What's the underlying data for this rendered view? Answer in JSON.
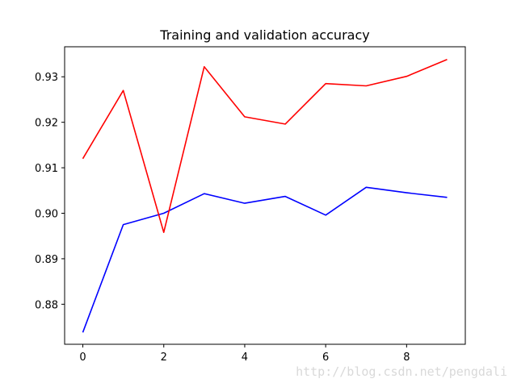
{
  "chart_data": {
    "type": "line",
    "title": "Training and validation accuracy",
    "xlabel": "",
    "ylabel": "",
    "x": [
      0,
      1,
      2,
      3,
      4,
      5,
      6,
      7,
      8,
      9
    ],
    "series": [
      {
        "color": "#0000ff",
        "values": [
          0.8738,
          0.8975,
          0.9,
          0.9043,
          0.9022,
          0.9037,
          0.8996,
          0.9057,
          0.9045,
          0.9035
        ]
      },
      {
        "color": "#ff0000",
        "values": [
          0.912,
          0.927,
          0.8958,
          0.9322,
          0.9212,
          0.9196,
          0.9285,
          0.928,
          0.9301,
          0.9338
        ]
      }
    ],
    "xlim": [
      -0.45,
      9.45
    ],
    "ylim": [
      0.8712,
      0.9366
    ],
    "xticks": [
      0,
      2,
      4,
      6,
      8
    ],
    "xtick_labels": [
      "0",
      "2",
      "4",
      "6",
      "8"
    ],
    "yticks": [
      0.88,
      0.89,
      0.9,
      0.91,
      0.92,
      0.93
    ],
    "ytick_labels": [
      "0.88",
      "0.89",
      "0.90",
      "0.91",
      "0.92",
      "0.93"
    ],
    "grid": false,
    "legend": "none"
  },
  "watermark": "http://blog.csdn.net/pengdali"
}
